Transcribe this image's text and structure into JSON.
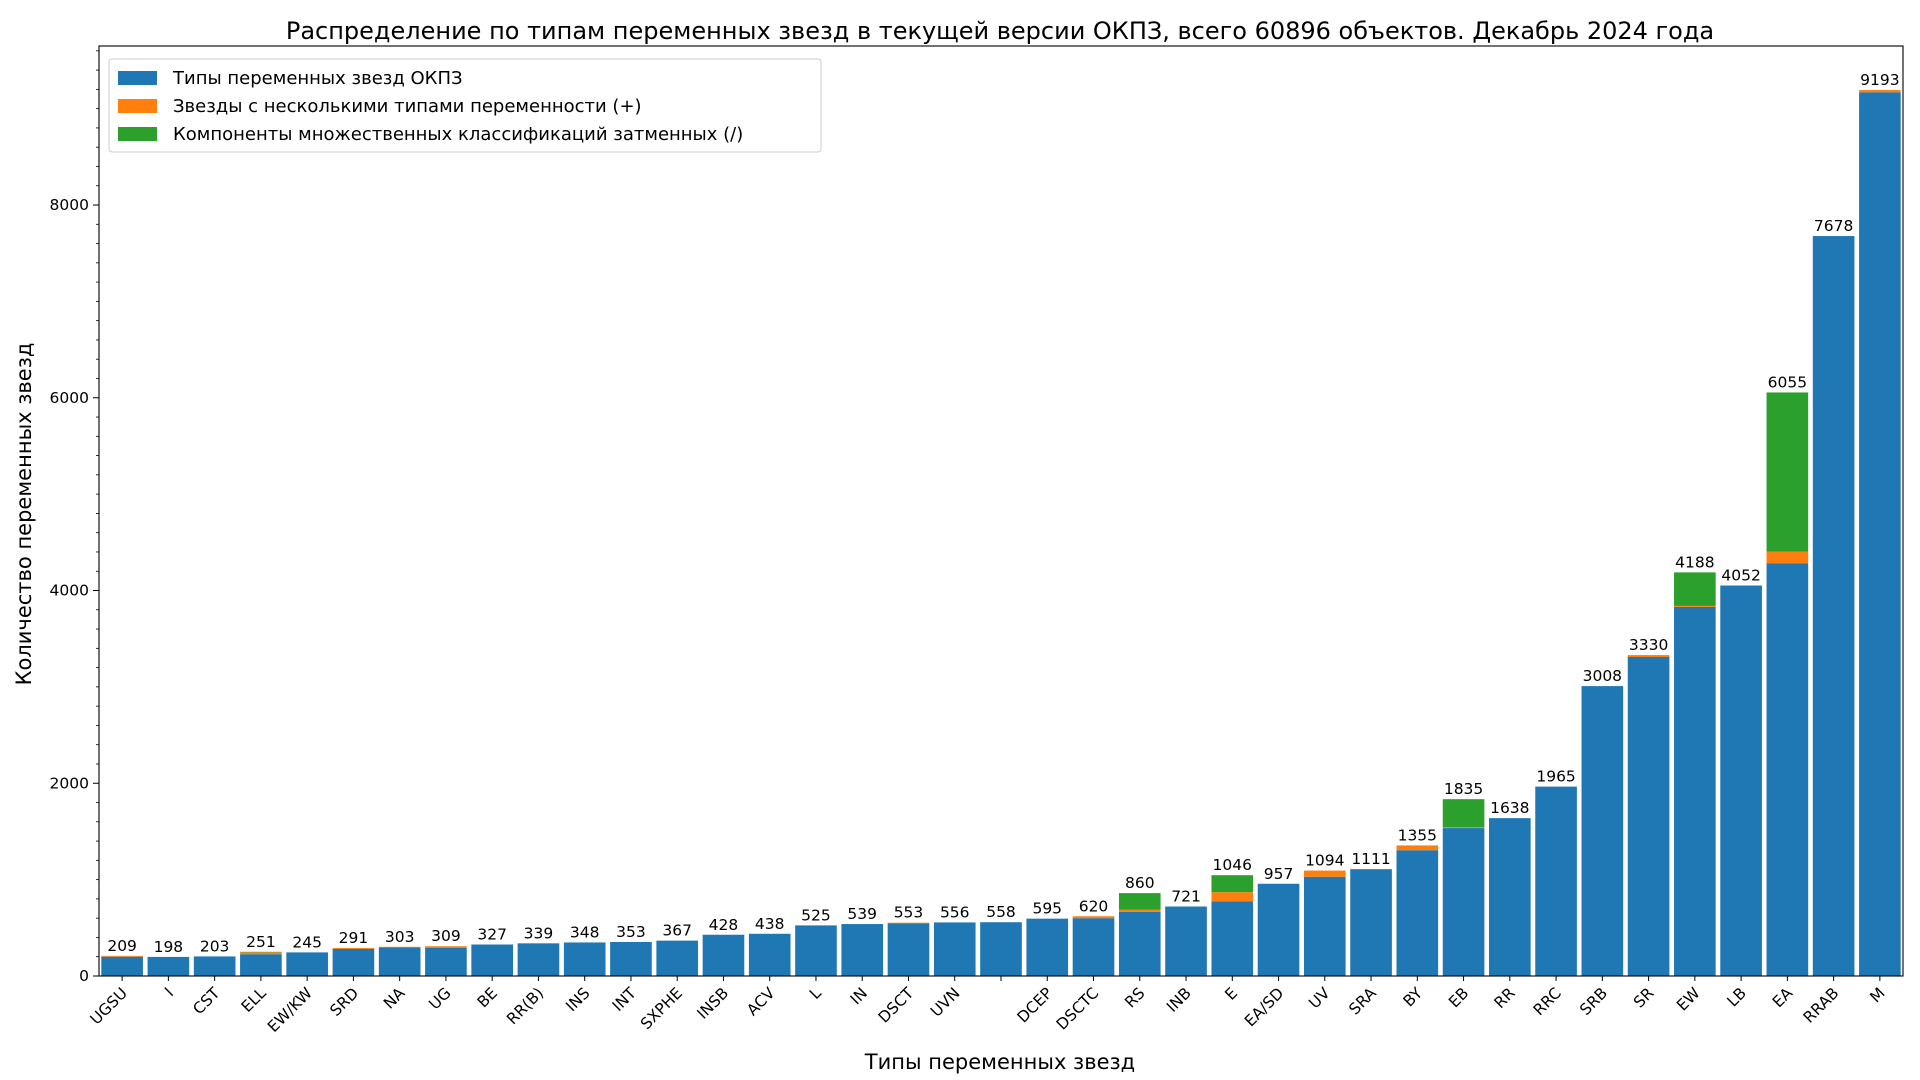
{
  "chart_data": {
    "type": "bar",
    "stacked": true,
    "title": "Распределение по типам переменных звезд в текущей версии ОКПЗ, всего 60896 объектов. Декабрь 2024 года",
    "xlabel": "Типы переменных звезд",
    "ylabel": "Количество переменных звезд",
    "ylim": [
      0,
      9650
    ],
    "yticks": [
      0,
      2000,
      4000,
      6000,
      8000
    ],
    "grid": false,
    "legend_position": "top-left",
    "categories": [
      "UGSU",
      "I",
      "CST",
      "ELL",
      "EW/KW",
      "SRD",
      "NA",
      "UG",
      "BE",
      "RR(B)",
      "INS",
      "INT",
      "SXPHE",
      "INSB",
      "ACV",
      "L",
      "IN",
      "DSCT",
      "UVN",
      "",
      "DCEP",
      "DSCTC",
      "RS",
      "INB",
      "E",
      "EA/SD",
      "UV",
      "SRA",
      "BY",
      "EB",
      "RR",
      "RRC",
      "SRB",
      "SR",
      "EW",
      "LB",
      "EA",
      "RRAB",
      "M"
    ],
    "totals": [
      209,
      198,
      203,
      251,
      245,
      291,
      303,
      309,
      327,
      339,
      348,
      353,
      367,
      428,
      438,
      525,
      539,
      553,
      556,
      558,
      595,
      620,
      860,
      721,
      1046,
      957,
      1094,
      1111,
      1355,
      1835,
      1638,
      1965,
      3008,
      3330,
      4188,
      4052,
      6055,
      7678,
      9193
    ],
    "series": [
      {
        "name": "Типы переменных звезд ОКПЗ",
        "color": "#1f77b4",
        "values": [
          200,
          198,
          203,
          226,
          245,
          281,
          298,
          294,
          327,
          339,
          348,
          353,
          367,
          428,
          438,
          525,
          539,
          548,
          556,
          558,
          595,
          600,
          665,
          721,
          775,
          957,
          1030,
          1105,
          1305,
          1535,
          1638,
          1965,
          3008,
          3310,
          3830,
          4052,
          4280,
          7678,
          9170
        ]
      },
      {
        "name": "Звезды с несколькими типами переменности (+)",
        "color": "#ff7f0e",
        "values": [
          9,
          0,
          0,
          20,
          0,
          10,
          5,
          15,
          0,
          0,
          0,
          0,
          0,
          0,
          0,
          0,
          0,
          5,
          0,
          0,
          0,
          20,
          25,
          0,
          95,
          0,
          64,
          6,
          50,
          10,
          0,
          0,
          0,
          20,
          10,
          0,
          125,
          0,
          23
        ]
      },
      {
        "name": "Компоненты множественных классификаций затменных (/)",
        "color": "#2ca02c",
        "values": [
          0,
          0,
          0,
          5,
          0,
          0,
          0,
          0,
          0,
          0,
          0,
          0,
          0,
          0,
          0,
          0,
          0,
          0,
          0,
          0,
          0,
          0,
          170,
          0,
          176,
          0,
          0,
          0,
          0,
          290,
          0,
          0,
          0,
          0,
          348,
          0,
          1650,
          0,
          0
        ]
      }
    ]
  }
}
